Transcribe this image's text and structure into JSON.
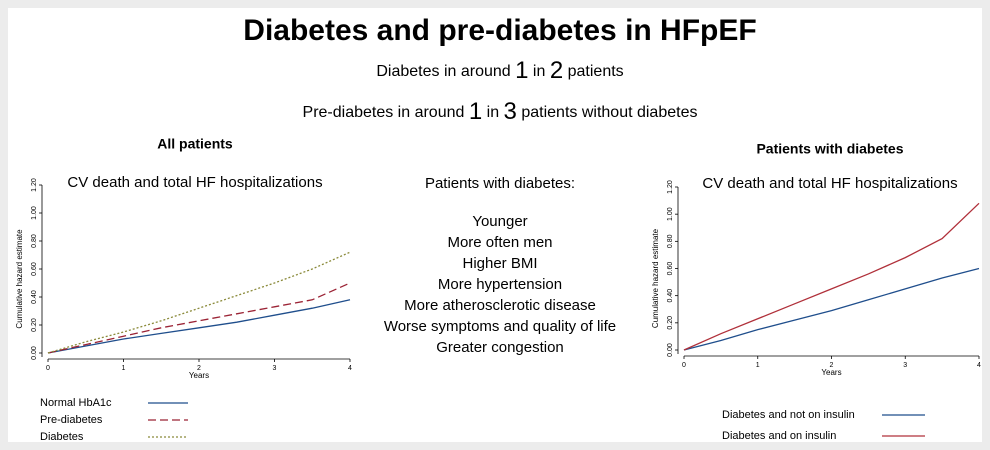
{
  "header": {
    "title": "Diabetes and pre-diabetes in HFpEF",
    "lines": [
      [
        "Diabetes in around ",
        "1",
        " in ",
        "2",
        " patients"
      ],
      [
        "Pre-diabetes in around ",
        "1",
        " in ",
        "3",
        " patients without diabetes"
      ]
    ]
  },
  "middle": {
    "heading": "Patients with diabetes:",
    "items": [
      "Younger",
      "More often men",
      "Higher BMI",
      "More hypertension",
      "More atherosclerotic disease",
      "Worse symptoms and quality of life",
      "Greater congestion"
    ]
  },
  "chart_data": [
    {
      "type": "line",
      "heading": "All patients",
      "title": "CV death and total HF hospitalizations",
      "x_label": "Years",
      "y_label": "Cumulative hazard estimate",
      "x": [
        0,
        0.5,
        1,
        1.5,
        2,
        2.5,
        3,
        3.5,
        4
      ],
      "xlim": [
        0,
        4
      ],
      "xticks": [
        0,
        1,
        2,
        3,
        4
      ],
      "ylim": [
        0,
        1.2
      ],
      "yticks": [
        {
          "value": 0,
          "label": "0.00"
        },
        {
          "value": 0.2,
          "label": "0.20"
        },
        {
          "value": 0.4,
          "label": "0.40"
        },
        {
          "value": 0.6,
          "label": "0.60"
        },
        {
          "value": 0.8,
          "label": "0.80"
        },
        {
          "value": 1.0,
          "label": "1.00"
        },
        {
          "value": 1.2,
          "label": "1.20"
        }
      ],
      "series": [
        {
          "name": "Normal HbA1c",
          "color": "#1f4e8c",
          "style": "solid",
          "values": [
            0,
            0.05,
            0.1,
            0.14,
            0.18,
            0.22,
            0.27,
            0.32,
            0.38
          ]
        },
        {
          "name": "Pre-diabetes",
          "color": "#9b2335",
          "style": "dashed",
          "values": [
            0,
            0.06,
            0.12,
            0.18,
            0.23,
            0.28,
            0.33,
            0.38,
            0.5
          ]
        },
        {
          "name": "Diabetes",
          "color": "#8a8a3a",
          "style": "dotted",
          "values": [
            0,
            0.08,
            0.15,
            0.23,
            0.32,
            0.41,
            0.5,
            0.6,
            0.72
          ]
        }
      ]
    },
    {
      "type": "line",
      "heading": "Patients with diabetes",
      "title": "CV death and total HF hospitalizations",
      "x_label": "Years",
      "y_label": "Cumulative hazard estimate",
      "x": [
        0,
        0.5,
        1,
        1.5,
        2,
        2.5,
        3,
        3.5,
        4
      ],
      "xlim": [
        0,
        4
      ],
      "xticks": [
        0,
        1,
        2,
        3,
        4
      ],
      "ylim": [
        0,
        1.2
      ],
      "yticks": [
        {
          "value": 0,
          "label": "0.00"
        },
        {
          "value": 0.2,
          "label": "0.20"
        },
        {
          "value": 0.4,
          "label": "0.40"
        },
        {
          "value": 0.6,
          "label": "0.60"
        },
        {
          "value": 0.8,
          "label": "0.80"
        },
        {
          "value": 1.0,
          "label": "1.00"
        },
        {
          "value": 1.2,
          "label": "1.20"
        }
      ],
      "series": [
        {
          "name": "Diabetes and not on insulin",
          "color": "#1f4e8c",
          "style": "solid",
          "values": [
            0,
            0.07,
            0.15,
            0.22,
            0.29,
            0.37,
            0.45,
            0.53,
            0.6
          ]
        },
        {
          "name": "Diabetes and on insulin",
          "color": "#b0303a",
          "style": "solid",
          "values": [
            0,
            0.12,
            0.23,
            0.34,
            0.45,
            0.56,
            0.68,
            0.82,
            1.08
          ]
        }
      ]
    }
  ]
}
